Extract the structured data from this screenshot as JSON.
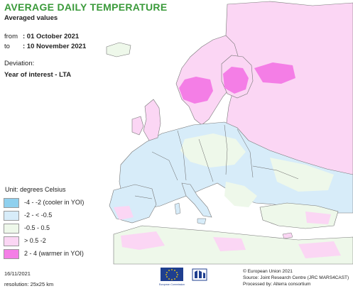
{
  "title": "AVERAGE DAILY TEMPERATURE",
  "subtitle": "Averaged values",
  "period": {
    "from_label": "from",
    "from_value": ": 01 October 2021",
    "to_label": "to",
    "to_value": ": 10 November 2021"
  },
  "deviation": {
    "label": "Deviation:",
    "value": "Year of interest - LTA"
  },
  "legend": {
    "title": "Unit: degrees Celsius",
    "items": [
      {
        "label": "-4 - -2 (cooler in YOI)",
        "color": "#8fd0ee"
      },
      {
        "label": "-2 - < -0.5",
        "color": "#d7ecf9"
      },
      {
        "label": "-0.5 - 0.5",
        "color": "#eef8ea"
      },
      {
        "label": "> 0.5 -2",
        "color": "#fbd6f4"
      },
      {
        "label": "2 - 4 (warmer in YOI)",
        "color": "#f47ee6"
      }
    ]
  },
  "colors": {
    "title": "#3a9a3a",
    "sea": "#ffffff",
    "border": "#555555",
    "neutral": "#eef8ea",
    "cool_light": "#d7ecf9",
    "cool_strong": "#8fd0ee",
    "warm_light": "#fbd6f4",
    "warm_strong": "#f47ee6"
  },
  "footer": {
    "date": "16/11/2021",
    "resolution": "resolution: 25x25 km",
    "copyright": "© European Union 2021",
    "source": "Source: Joint Research Centre (JRC MARS4CAST)",
    "processed": "Processed by: Alterra consortium",
    "eu_logo_text": "European Commission"
  }
}
